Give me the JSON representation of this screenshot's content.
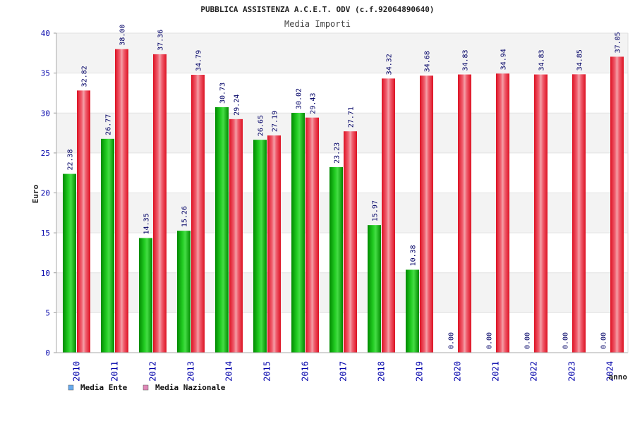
{
  "chart_data": {
    "type": "bar",
    "title": "PUBBLICA ASSISTENZA A.C.E.T. ODV (c.f.92064890640)",
    "subtitle": "Media Importi",
    "xlabel": "anno",
    "ylabel": "Euro",
    "ylim": [
      0,
      40
    ],
    "yticks": [
      0,
      5,
      10,
      15,
      20,
      25,
      30,
      35,
      40
    ],
    "grid": true,
    "legend_position": "bottom-left",
    "categories": [
      "2010",
      "2011",
      "2012",
      "2013",
      "2014",
      "2015",
      "2016",
      "2017",
      "2018",
      "2019",
      "2020",
      "2021",
      "2022",
      "2023",
      "2024"
    ],
    "series": [
      {
        "name": "Media Ente",
        "legend_color": "#66aaee",
        "bar_color": "#22bb22",
        "values": [
          22.38,
          26.77,
          14.35,
          15.26,
          30.73,
          26.65,
          30.02,
          23.23,
          15.97,
          10.38,
          0.0,
          0.0,
          0.0,
          0.0,
          0.0
        ],
        "labels": [
          "22.38",
          "26.77",
          "14.35",
          "15.26",
          "30.73",
          "26.65",
          "30.02",
          "23.23",
          "15.97",
          "10.38",
          "0.00",
          "0.00",
          "0.00",
          "0.00",
          "0.00"
        ]
      },
      {
        "name": "Media Nazionale",
        "legend_color": "#e088b8",
        "bar_color": "#ee2233",
        "values": [
          32.82,
          38.0,
          37.36,
          34.79,
          29.24,
          27.19,
          29.43,
          27.71,
          34.32,
          34.68,
          34.83,
          34.94,
          34.83,
          34.85,
          37.05
        ],
        "labels": [
          "32.82",
          "38.00",
          "37.36",
          "34.79",
          "29.24",
          "27.19",
          "29.43",
          "27.71",
          "34.32",
          "34.68",
          "34.83",
          "34.94",
          "34.83",
          "34.85",
          "37.05"
        ]
      }
    ]
  }
}
